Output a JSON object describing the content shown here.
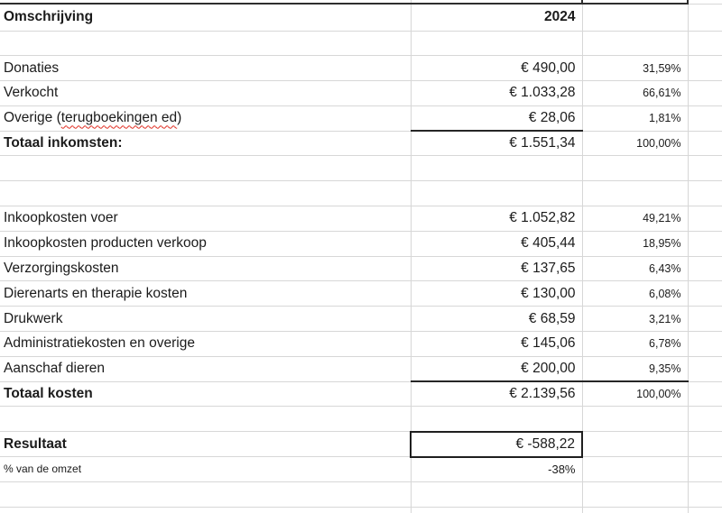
{
  "sheet": {
    "header": {
      "description": "Omschrijving",
      "year": "2024"
    },
    "income": {
      "donaties": {
        "label": "Donaties",
        "value": "€ 490,00",
        "pct": "31,59%"
      },
      "verkocht": {
        "label": "Verkocht",
        "value": "€ 1.033,28",
        "pct": "66,61%"
      },
      "overige": {
        "label_pre": "Overige (",
        "label_misspelled": "terugboekingen ed",
        "label_post": ")",
        "value": "€ 28,06",
        "pct": "1,81%"
      },
      "totaal": {
        "label": "Totaal inkomsten:",
        "value": "€ 1.551,34",
        "pct": "100,00%"
      }
    },
    "kosten": {
      "voer": {
        "label": "Inkoopkosten voer",
        "value": "€ 1.052,82",
        "pct": "49,21%"
      },
      "producten": {
        "label": "Inkoopkosten producten verkoop",
        "value": "€ 405,44",
        "pct": "18,95%"
      },
      "verzorging": {
        "label": "Verzorgingskosten",
        "value": "€ 137,65",
        "pct": "6,43%"
      },
      "dierenarts": {
        "label": "Dierenarts en therapie kosten",
        "value": "€ 130,00",
        "pct": "6,08%"
      },
      "drukwerk": {
        "label": "Drukwerk",
        "value": "€ 68,59",
        "pct": "3,21%"
      },
      "administratie": {
        "label": "Administratiekosten en overige",
        "value": "€ 145,06",
        "pct": "6,78%"
      },
      "aanschaf": {
        "label": "Aanschaf dieren",
        "value": "€ 200,00",
        "pct": "9,35%"
      },
      "totaal": {
        "label": "Totaal kosten",
        "value": "€ 2.139,56",
        "pct": "100,00%"
      }
    },
    "resultaat": {
      "label": "Resultaat",
      "value": "€ -588,22"
    },
    "omzet_pct": {
      "label": "% van de omzet",
      "value": "-38%"
    }
  },
  "colors": {
    "gridline": "#d7d7d7",
    "dark_border": "#262626",
    "spellcheck_red": "#e02b20",
    "text": "#1b1b1b",
    "background": "#ffffff"
  }
}
